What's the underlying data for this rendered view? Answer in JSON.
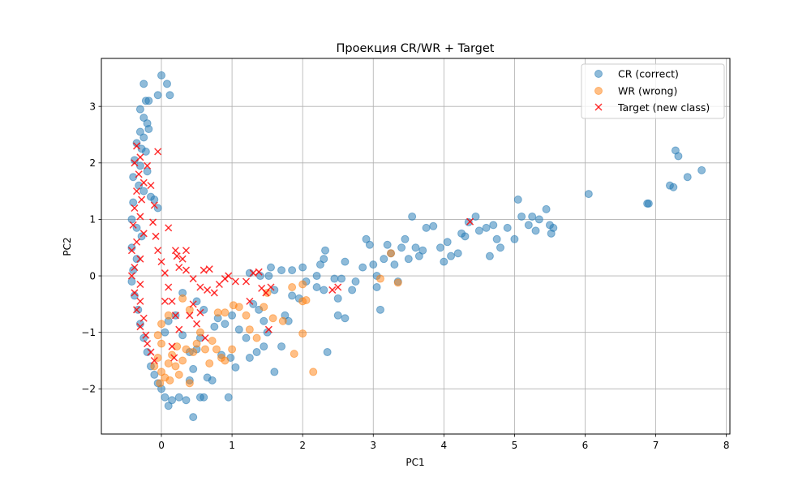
{
  "chart_data": {
    "type": "scatter",
    "title": "Проекция CR/WR + Target",
    "xlabel": "PC1",
    "ylabel": "PC2",
    "xlim": [
      -0.85,
      8.05
    ],
    "ylim": [
      -2.8,
      3.85
    ],
    "xticks": [
      0,
      1,
      2,
      3,
      4,
      5,
      6,
      7,
      8
    ],
    "yticks": [
      -2,
      -1,
      0,
      1,
      2,
      3
    ],
    "grid": true,
    "legend_position": "top-right",
    "colors": {
      "cr": "#1f77b4",
      "wr": "#ff7f0e",
      "target": "#ff0000"
    },
    "series": [
      {
        "name": "CR (correct)",
        "marker": "circle",
        "color": "#1f77b4",
        "points": [
          [
            -0.25,
            3.4
          ],
          [
            0.0,
            3.55
          ],
          [
            0.08,
            3.4
          ],
          [
            0.12,
            3.2
          ],
          [
            -0.05,
            3.2
          ],
          [
            -0.22,
            3.1
          ],
          [
            -0.18,
            3.1
          ],
          [
            -0.3,
            2.95
          ],
          [
            -0.25,
            2.8
          ],
          [
            -0.2,
            2.7
          ],
          [
            -0.3,
            2.55
          ],
          [
            -0.25,
            2.45
          ],
          [
            -0.18,
            2.6
          ],
          [
            -0.35,
            2.35
          ],
          [
            -0.28,
            2.25
          ],
          [
            -0.22,
            2.2
          ],
          [
            -0.38,
            2.05
          ],
          [
            -0.3,
            1.95
          ],
          [
            -0.2,
            1.85
          ],
          [
            -0.4,
            1.75
          ],
          [
            -0.32,
            1.6
          ],
          [
            -0.25,
            1.5
          ],
          [
            -0.15,
            1.4
          ],
          [
            -0.4,
            1.3
          ],
          [
            -0.1,
            1.35
          ],
          [
            -0.05,
            1.2
          ],
          [
            -0.42,
            1.0
          ],
          [
            -0.35,
            0.85
          ],
          [
            -0.28,
            0.7
          ],
          [
            -0.42,
            0.5
          ],
          [
            -0.35,
            0.3
          ],
          [
            -0.4,
            0.1
          ],
          [
            -0.42,
            -0.1
          ],
          [
            -0.38,
            -0.35
          ],
          [
            -0.33,
            -0.6
          ],
          [
            -0.3,
            -0.85
          ],
          [
            -0.25,
            -1.1
          ],
          [
            -0.2,
            -1.35
          ],
          [
            -0.15,
            -1.6
          ],
          [
            -0.1,
            -1.75
          ],
          [
            -0.05,
            -1.9
          ],
          [
            0.0,
            -2.0
          ],
          [
            0.05,
            -2.15
          ],
          [
            0.1,
            -2.3
          ],
          [
            0.15,
            -2.2
          ],
          [
            0.25,
            -2.15
          ],
          [
            0.35,
            -2.2
          ],
          [
            0.45,
            -2.5
          ],
          [
            0.55,
            -2.15
          ],
          [
            0.6,
            -2.15
          ],
          [
            0.95,
            -2.15
          ],
          [
            0.4,
            -1.85
          ],
          [
            0.45,
            -1.65
          ],
          [
            0.65,
            -1.8
          ],
          [
            0.72,
            -1.85
          ],
          [
            0.85,
            -1.4
          ],
          [
            0.98,
            -1.45
          ],
          [
            1.05,
            -1.62
          ],
          [
            1.25,
            -1.45
          ],
          [
            1.35,
            -1.35
          ],
          [
            1.6,
            -1.7
          ],
          [
            1.45,
            -1.25
          ],
          [
            1.7,
            -1.25
          ],
          [
            1.2,
            -1.1
          ],
          [
            1.1,
            -0.95
          ],
          [
            0.9,
            -0.85
          ],
          [
            0.8,
            -0.75
          ],
          [
            0.75,
            -0.9
          ],
          [
            0.6,
            -0.6
          ],
          [
            0.5,
            -0.45
          ],
          [
            0.3,
            -0.3
          ],
          [
            0.2,
            -0.7
          ],
          [
            0.1,
            -0.8
          ],
          [
            0.05,
            -1.0
          ],
          [
            0.3,
            -1.05
          ],
          [
            0.4,
            -1.35
          ],
          [
            0.5,
            -1.3
          ],
          [
            0.55,
            -1.1
          ],
          [
            1.0,
            -0.7
          ],
          [
            1.3,
            -0.5
          ],
          [
            1.38,
            -0.6
          ],
          [
            1.45,
            -0.8
          ],
          [
            1.5,
            -1.0
          ],
          [
            1.75,
            -0.7
          ],
          [
            1.8,
            -0.8
          ],
          [
            1.85,
            -0.35
          ],
          [
            1.95,
            -0.4
          ],
          [
            1.6,
            -0.25
          ],
          [
            1.7,
            0.1
          ],
          [
            1.55,
            0.15
          ],
          [
            1.85,
            0.1
          ],
          [
            2.0,
            0.15
          ],
          [
            1.25,
            0.05
          ],
          [
            1.4,
            0.0
          ],
          [
            1.52,
            0.0
          ],
          [
            2.05,
            -0.1
          ],
          [
            2.2,
            -0.2
          ],
          [
            2.3,
            -0.25
          ],
          [
            2.35,
            -1.35
          ],
          [
            2.2,
            0.0
          ],
          [
            2.25,
            0.2
          ],
          [
            2.3,
            0.3
          ],
          [
            2.32,
            0.45
          ],
          [
            2.45,
            -0.05
          ],
          [
            2.5,
            -0.4
          ],
          [
            2.5,
            -0.7
          ],
          [
            2.6,
            0.25
          ],
          [
            2.55,
            -0.05
          ],
          [
            2.6,
            -0.75
          ],
          [
            2.7,
            -0.25
          ],
          [
            2.75,
            -0.1
          ],
          [
            2.85,
            0.15
          ],
          [
            2.9,
            0.65
          ],
          [
            2.95,
            0.55
          ],
          [
            3.0,
            0.2
          ],
          [
            3.05,
            0.0
          ],
          [
            3.05,
            -0.2
          ],
          [
            3.1,
            -0.6
          ],
          [
            3.15,
            0.3
          ],
          [
            3.2,
            0.55
          ],
          [
            3.25,
            0.4
          ],
          [
            3.3,
            0.2
          ],
          [
            3.35,
            -0.1
          ],
          [
            3.4,
            0.5
          ],
          [
            3.45,
            0.65
          ],
          [
            3.5,
            0.3
          ],
          [
            3.55,
            1.05
          ],
          [
            3.6,
            0.5
          ],
          [
            3.65,
            0.35
          ],
          [
            3.7,
            0.45
          ],
          [
            3.75,
            0.85
          ],
          [
            3.85,
            0.88
          ],
          [
            3.95,
            0.5
          ],
          [
            4.0,
            0.25
          ],
          [
            4.05,
            0.6
          ],
          [
            4.1,
            0.35
          ],
          [
            4.2,
            0.4
          ],
          [
            4.25,
            0.75
          ],
          [
            4.3,
            0.7
          ],
          [
            4.35,
            0.95
          ],
          [
            4.45,
            1.05
          ],
          [
            4.5,
            0.8
          ],
          [
            4.6,
            0.85
          ],
          [
            4.65,
            0.35
          ],
          [
            4.7,
            0.9
          ],
          [
            4.75,
            0.65
          ],
          [
            4.8,
            0.5
          ],
          [
            4.9,
            0.85
          ],
          [
            5.0,
            0.65
          ],
          [
            5.05,
            1.35
          ],
          [
            5.1,
            1.05
          ],
          [
            5.2,
            0.9
          ],
          [
            5.25,
            1.05
          ],
          [
            5.3,
            0.8
          ],
          [
            5.35,
            1.0
          ],
          [
            5.45,
            1.18
          ],
          [
            5.5,
            0.9
          ],
          [
            5.52,
            0.75
          ],
          [
            5.55,
            0.85
          ],
          [
            6.05,
            1.45
          ],
          [
            6.88,
            1.28
          ],
          [
            7.2,
            1.6
          ],
          [
            7.28,
            2.22
          ],
          [
            7.32,
            2.12
          ],
          [
            7.25,
            1.57
          ],
          [
            7.45,
            1.75
          ],
          [
            7.65,
            1.87
          ],
          [
            6.9,
            1.28
          ]
        ]
      },
      {
        "name": "WR (wrong)",
        "marker": "circle",
        "color": "#ff7f0e",
        "points": [
          [
            -0.05,
            -1.45
          ],
          [
            0.0,
            -1.7
          ],
          [
            0.05,
            -1.8
          ],
          [
            -0.02,
            -1.9
          ],
          [
            0.1,
            -1.55
          ],
          [
            0.15,
            -1.4
          ],
          [
            0.2,
            -1.6
          ],
          [
            0.25,
            -1.75
          ],
          [
            0.3,
            -1.5
          ],
          [
            0.35,
            -1.3
          ],
          [
            0.4,
            -1.9
          ],
          [
            0.45,
            -1.35
          ],
          [
            0.5,
            -1.2
          ],
          [
            0.55,
            -1.0
          ],
          [
            0.62,
            -1.3
          ],
          [
            0.68,
            -1.55
          ],
          [
            0.72,
            -1.15
          ],
          [
            0.78,
            -1.3
          ],
          [
            0.85,
            -1.45
          ],
          [
            0.9,
            -1.5
          ],
          [
            1.0,
            -1.3
          ],
          [
            0.8,
            -0.65
          ],
          [
            0.9,
            -0.65
          ],
          [
            1.02,
            -0.52
          ],
          [
            1.1,
            -0.55
          ],
          [
            1.2,
            -0.7
          ],
          [
            1.25,
            -0.95
          ],
          [
            1.35,
            -1.1
          ],
          [
            1.45,
            -0.55
          ],
          [
            1.58,
            -0.75
          ],
          [
            1.72,
            -0.8
          ],
          [
            1.88,
            -1.38
          ],
          [
            2.0,
            -1.02
          ],
          [
            2.15,
            -1.7
          ],
          [
            2.05,
            -0.43
          ],
          [
            2.0,
            -0.45
          ],
          [
            1.85,
            -0.2
          ],
          [
            2.0,
            -0.15
          ],
          [
            1.5,
            -0.3
          ],
          [
            0.4,
            -0.6
          ],
          [
            0.3,
            -0.4
          ],
          [
            0.1,
            -0.7
          ],
          [
            0.0,
            -1.2
          ],
          [
            0.0,
            -0.85
          ],
          [
            -0.05,
            -1.05
          ],
          [
            3.1,
            -0.05
          ],
          [
            3.25,
            0.4
          ],
          [
            3.35,
            -0.12
          ],
          [
            -0.1,
            -1.6
          ],
          [
            0.12,
            -1.85
          ],
          [
            0.22,
            -1.25
          ]
        ]
      },
      {
        "name": "Target (new class)",
        "marker": "x",
        "color": "#ff0000",
        "points": [
          [
            -0.35,
            2.3
          ],
          [
            -0.3,
            2.1
          ],
          [
            -0.38,
            2.0
          ],
          [
            -0.32,
            1.8
          ],
          [
            -0.25,
            1.65
          ],
          [
            -0.35,
            1.5
          ],
          [
            -0.28,
            1.35
          ],
          [
            -0.38,
            1.2
          ],
          [
            -0.3,
            1.05
          ],
          [
            -0.4,
            0.9
          ],
          [
            -0.25,
            0.75
          ],
          [
            -0.35,
            0.6
          ],
          [
            -0.42,
            0.45
          ],
          [
            -0.3,
            0.3
          ],
          [
            -0.38,
            0.15
          ],
          [
            -0.42,
            0.0
          ],
          [
            -0.3,
            -0.15
          ],
          [
            -0.38,
            -0.3
          ],
          [
            -0.3,
            -0.45
          ],
          [
            -0.35,
            -0.6
          ],
          [
            -0.25,
            -0.75
          ],
          [
            -0.3,
            -0.9
          ],
          [
            -0.22,
            -1.05
          ],
          [
            -0.2,
            -1.2
          ],
          [
            -0.15,
            -1.35
          ],
          [
            -0.1,
            -1.5
          ],
          [
            -0.2,
            1.95
          ],
          [
            -0.15,
            1.6
          ],
          [
            -0.1,
            1.25
          ],
          [
            -0.12,
            0.95
          ],
          [
            -0.08,
            0.7
          ],
          [
            -0.05,
            0.45
          ],
          [
            0.0,
            0.25
          ],
          [
            0.05,
            0.05
          ],
          [
            0.1,
            -0.2
          ],
          [
            0.15,
            -0.45
          ],
          [
            0.2,
            -0.7
          ],
          [
            0.25,
            -0.95
          ],
          [
            0.15,
            -1.25
          ],
          [
            0.18,
            -1.45
          ],
          [
            0.1,
            0.85
          ],
          [
            0.2,
            0.45
          ],
          [
            0.3,
            0.3
          ],
          [
            0.35,
            0.45
          ],
          [
            0.25,
            0.15
          ],
          [
            0.35,
            0.1
          ],
          [
            0.45,
            -0.05
          ],
          [
            0.55,
            -0.2
          ],
          [
            0.45,
            -0.5
          ],
          [
            0.4,
            -0.7
          ],
          [
            0.5,
            -0.85
          ],
          [
            0.6,
            0.1
          ],
          [
            0.68,
            0.12
          ],
          [
            0.65,
            -0.25
          ],
          [
            0.75,
            -0.3
          ],
          [
            0.82,
            -0.15
          ],
          [
            0.95,
            0.0
          ],
          [
            0.9,
            -0.05
          ],
          [
            1.05,
            -0.1
          ],
          [
            1.2,
            -0.1
          ],
          [
            1.25,
            -0.45
          ],
          [
            1.3,
            0.05
          ],
          [
            1.38,
            0.07
          ],
          [
            1.42,
            -0.22
          ],
          [
            1.48,
            -0.3
          ],
          [
            1.55,
            -0.2
          ],
          [
            1.52,
            -0.95
          ],
          [
            0.62,
            -1.1
          ],
          [
            0.55,
            -0.65
          ],
          [
            2.42,
            -0.25
          ],
          [
            2.5,
            -0.2
          ],
          [
            4.37,
            0.96
          ],
          [
            0.05,
            -0.45
          ],
          [
            -0.05,
            2.2
          ],
          [
            0.22,
            0.35
          ]
        ]
      }
    ]
  }
}
